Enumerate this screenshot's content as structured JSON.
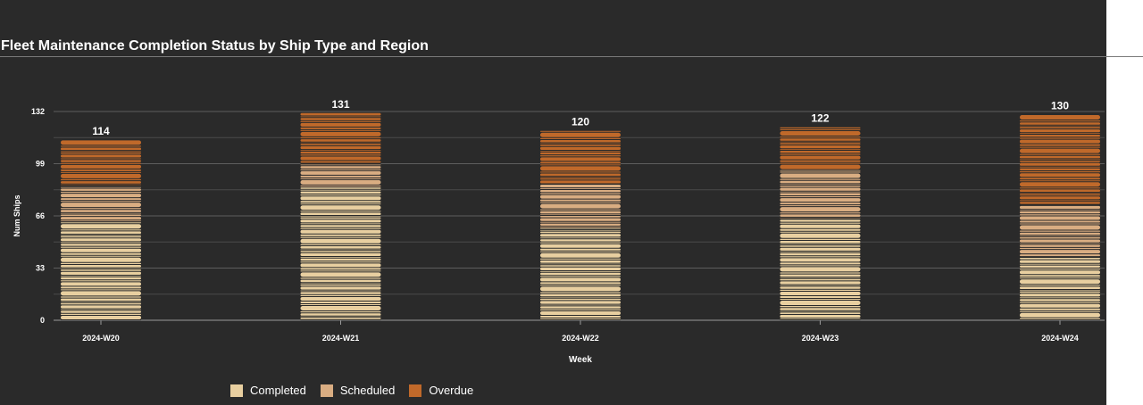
{
  "chart_data": {
    "type": "bar",
    "stacked": true,
    "title": "Fleet Maintenance Completion Status by Ship Type and Region",
    "xlabel": "Week",
    "ylabel": "Num Ships",
    "ylim": [
      0,
      132
    ],
    "yticks": [
      0,
      33,
      66,
      99,
      132
    ],
    "grid": true,
    "legend_position": "bottom",
    "categories": [
      "2024-W20",
      "2024-W21",
      "2024-W22",
      "2024-W23",
      "2024-W24"
    ],
    "totals": [
      114,
      131,
      120,
      122,
      130
    ],
    "series": [
      {
        "name": "Completed",
        "color": "#e8cfa0",
        "values": [
          62,
          84,
          58,
          64,
          40
        ]
      },
      {
        "name": "Scheduled",
        "color": "#d9ad82",
        "values": [
          23,
          15,
          28,
          31,
          33
        ]
      },
      {
        "name": "Overdue",
        "color": "#c0692a",
        "values": [
          29,
          32,
          34,
          27,
          57
        ]
      }
    ]
  }
}
